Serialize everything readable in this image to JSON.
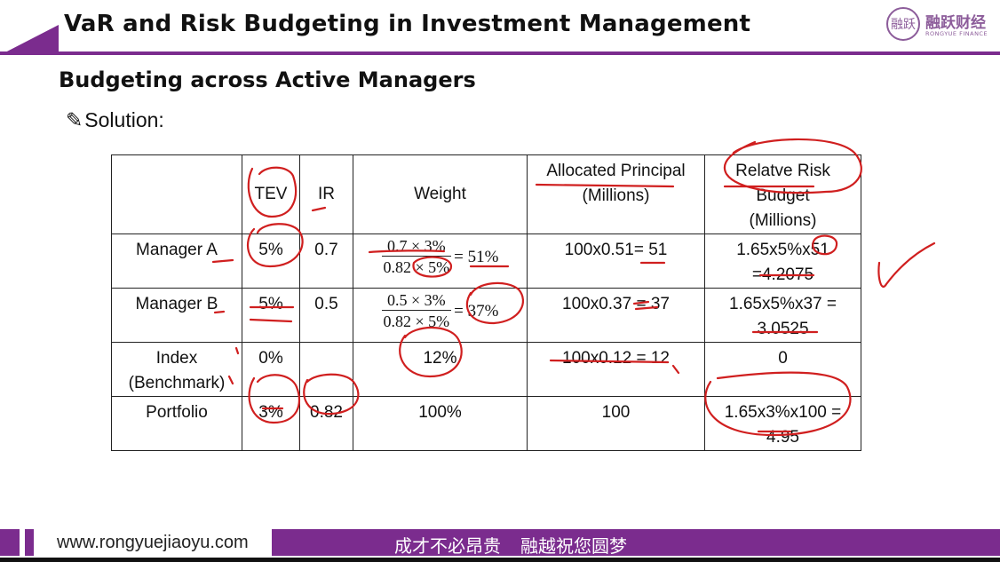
{
  "header": {
    "title": "VaR and Risk Budgeting in Investment Management",
    "logo_mark": "融跃",
    "logo_cn": "融跃财经",
    "logo_en": "RONGYUE FINANCE"
  },
  "section": {
    "subtitle": "Budgeting across Active Managers",
    "solution_label": "Solution:",
    "pen_icon": "✎"
  },
  "table": {
    "headers": [
      "",
      "TEV",
      "IR",
      "Weight",
      "Allocated Principal (Millions)",
      "Relatve Risk Budget (Millions)"
    ],
    "header_lines": {
      "principal_1": "Allocated Principal",
      "principal_2": "(Millions)",
      "risk_1": "Relatve Risk",
      "risk_2": "Budget",
      "risk_3": "(Millions)"
    },
    "rows": [
      {
        "name": "Manager A",
        "tev": "5%",
        "ir": "0.7",
        "weight_num": "0.7 × 3%",
        "weight_den": "0.82 × 5%",
        "weight_result": "= 51%",
        "principal": "100x0.51= 51",
        "risk_1": "1.65x5%x51",
        "risk_2": "=4.2075"
      },
      {
        "name": "Manager B",
        "tev": "5%",
        "ir": "0.5",
        "weight_num": "0.5 × 3%",
        "weight_den": "0.82 × 5%",
        "weight_result": "= 37%",
        "principal": "100x0.37 = 37",
        "risk_1": "1.65x5%x37 =",
        "risk_2": "3.0525"
      },
      {
        "name_1": "Index",
        "name_2": "(Benchmark)",
        "tev": "0%",
        "ir": "",
        "weight": "12%",
        "principal": "100x0.12 = 12",
        "risk": "0"
      },
      {
        "name": "Portfolio",
        "tev": "3%",
        "ir": "0.82",
        "weight": "100%",
        "principal": "100",
        "risk_1": "1.65x3%x100 =",
        "risk_2": "4.95"
      }
    ]
  },
  "footer": {
    "url": "www.rongyuejiaoyu.com",
    "slogan_1": "成才不必昂贵",
    "slogan_2": "融越祝您圆梦"
  },
  "colors": {
    "brand_purple": "#7b2c8e",
    "annotation_red": "#d01f1f",
    "logo_purple": "#8c5c9a"
  }
}
